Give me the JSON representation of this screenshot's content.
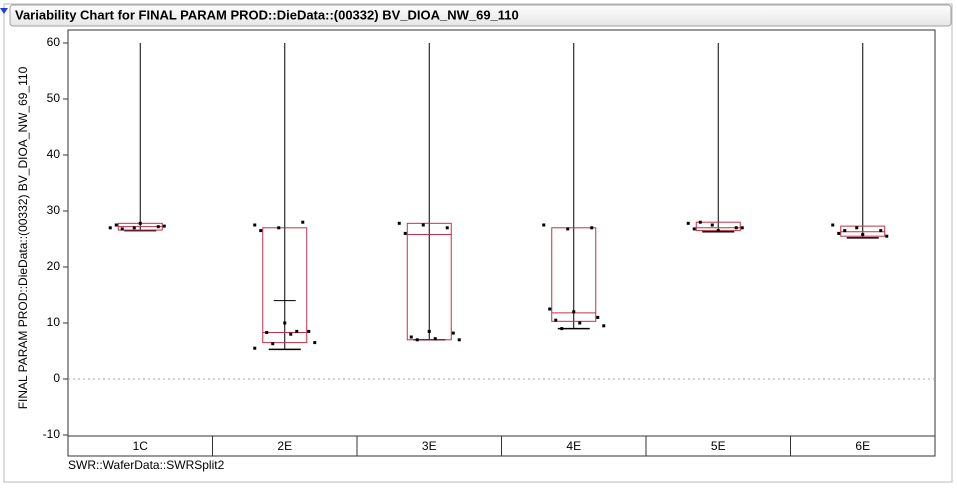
{
  "chart_data": {
    "type": "variability",
    "title": "Variability Chart for FINAL PARAM PROD::DieData::(00332) BV_DIOA_NW_69_110",
    "y_label": "FINAL PARAM PROD::DieData::(00332) BV_DIOA_NW_69_110",
    "x_label": "SWR::WaferData::SWRSplit2",
    "categories": [
      "1C",
      "2E",
      "3E",
      "4E",
      "5E",
      "6E"
    ],
    "points": [
      [
        27,
        27,
        27.2,
        27.5,
        27.8,
        27.3,
        26.8
      ],
      [
        27.5,
        27,
        28,
        26.5,
        10,
        8.5,
        8.3,
        8,
        6.5,
        6.3,
        8.5,
        5.5
      ],
      [
        27.8,
        27.5,
        27,
        26,
        8.5,
        8.2,
        7.5,
        7.2,
        7,
        7
      ],
      [
        27.5,
        26.8,
        27,
        12.5,
        12,
        11,
        10.5,
        10,
        9.5,
        9
      ],
      [
        27.8,
        27.5,
        27,
        26.8,
        26.5,
        27,
        28
      ],
      [
        27.5,
        27,
        26.5,
        26,
        25.8,
        25.5,
        26.5
      ]
    ],
    "q1": [
      26.6,
      6.5,
      7,
      10.3,
      26.5,
      25.5
    ],
    "median": [
      27.2,
      8.3,
      25.8,
      11.8,
      27,
      26.3
    ],
    "q3": [
      27.8,
      27,
      27.8,
      27,
      28,
      27.3
    ],
    "min": [
      26.5,
      5.3,
      7,
      9,
      26.3,
      25.2
    ],
    "max": [
      60,
      60,
      60,
      60,
      60,
      60
    ],
    "mean": [
      null,
      14,
      null,
      null,
      null,
      null
    ],
    "box_color": "#c0304a",
    "reference_line": 0,
    "ylim": [
      -10,
      60
    ],
    "yticks": [
      -10,
      0,
      10,
      20,
      30,
      40,
      50,
      60
    ]
  }
}
